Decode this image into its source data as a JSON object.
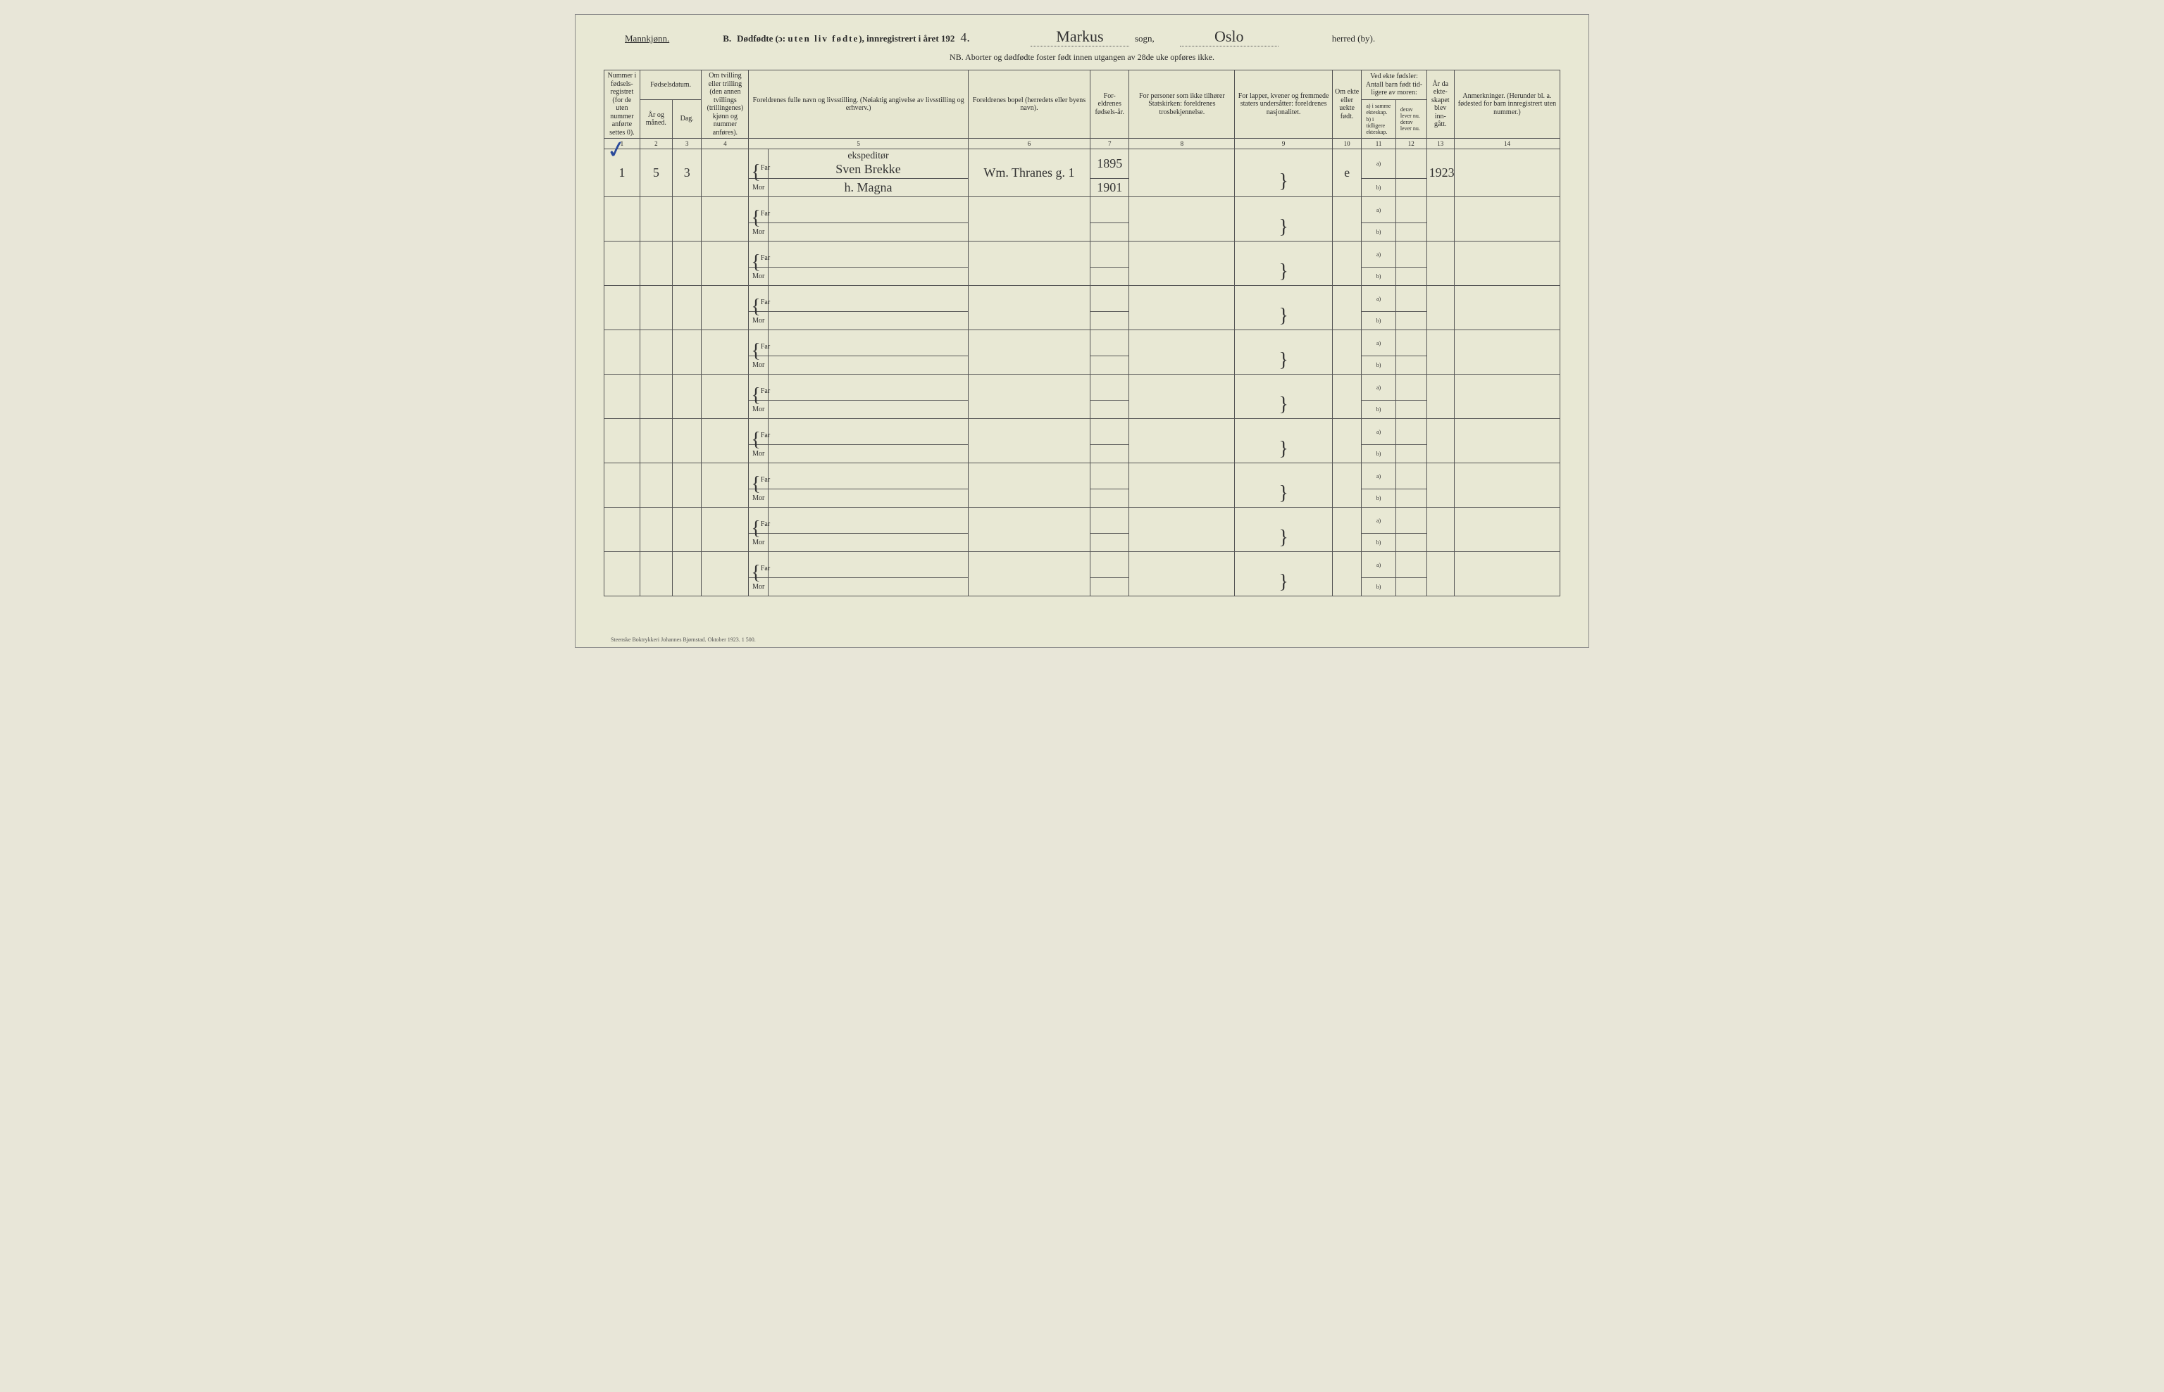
{
  "header": {
    "gender": "Mannkjønn.",
    "section": "B.",
    "title1": "Dødfødte (ɔ:",
    "title1b": "uten liv fødte",
    "title1c": "), innregistrert i året 192",
    "year_suffix": "4.",
    "parish": "Markus",
    "parish_label": "sogn,",
    "district": "Oslo",
    "district_label": "herred (by)."
  },
  "subheader": "NB.  Aborter og dødfødte foster født innen utgangen av 28de uke opføres ikke.",
  "columns": {
    "c1": "Nummer i fødsels-registret (for de uten nummer anførte settes 0).",
    "c2_top": "Fødselsdatum.",
    "c2a": "År og måned.",
    "c2b": "Dag.",
    "c4": "Om tvilling eller trilling (den annen tvillings (trillingenes) kjønn og nummer anføres).",
    "c5": "Foreldrenes fulle navn og livsstilling. (Nøiaktig angivelse av livsstilling og erhverv.)",
    "c6": "Foreldrenes bopel (herredets eller byens navn).",
    "c7": "For-eldrenes fødsels-år.",
    "c8": "For personer som ikke tilhører Statskirken: foreldrenes trosbekjennelse.",
    "c9": "For lapper, kvener og fremmede staters undersåtter: foreldrenes nasjonalitet.",
    "c10": "Om ekte eller uekte født.",
    "c11_top": "Ved ekte fødsler: Antall barn født tid-ligere av moren:",
    "c11a": "a) i samme ekteskap.",
    "c11b": "b) i tidligere ekteskap.",
    "c12a": "derav lever nu.",
    "c12b": "derav lever nu.",
    "c13": "År da ekte-skapet blev inn-gått.",
    "c14": "Anmerkninger. (Herunder bl. a. fødested for barn innregistrert uten nummer.)"
  },
  "colnums": [
    "1",
    "2",
    "3",
    "4",
    "5",
    "6",
    "7",
    "8",
    "9",
    "10",
    "11",
    "12",
    "13",
    "14"
  ],
  "row_labels": {
    "far": "Far",
    "mor": "Mor"
  },
  "sub_labels": {
    "a": "a)",
    "b": "b)"
  },
  "entry": {
    "num": "1",
    "month": "5",
    "day": "3",
    "occupation": "ekspeditør",
    "far_name": "Sven Brekke",
    "mor_name": "h. Magna",
    "address": "Wm. Thranes g. 1",
    "far_year": "1895",
    "mor_year": "1901",
    "ekte": "e",
    "c11a": "a)",
    "marriage_year": "1923"
  },
  "footer": "Steenske Boktrykkeri Johannes Bjørnstad.   Oktober 1923.   1 500.",
  "style": {
    "page_bg": "#e8e8d4",
    "border_color": "#555555",
    "text_color": "#2a2a2a",
    "handwriting_color": "#333333",
    "check_color": "#2a4a9a",
    "header_fontsize": 13,
    "cell_fontsize": 10,
    "num_rows": 10
  }
}
